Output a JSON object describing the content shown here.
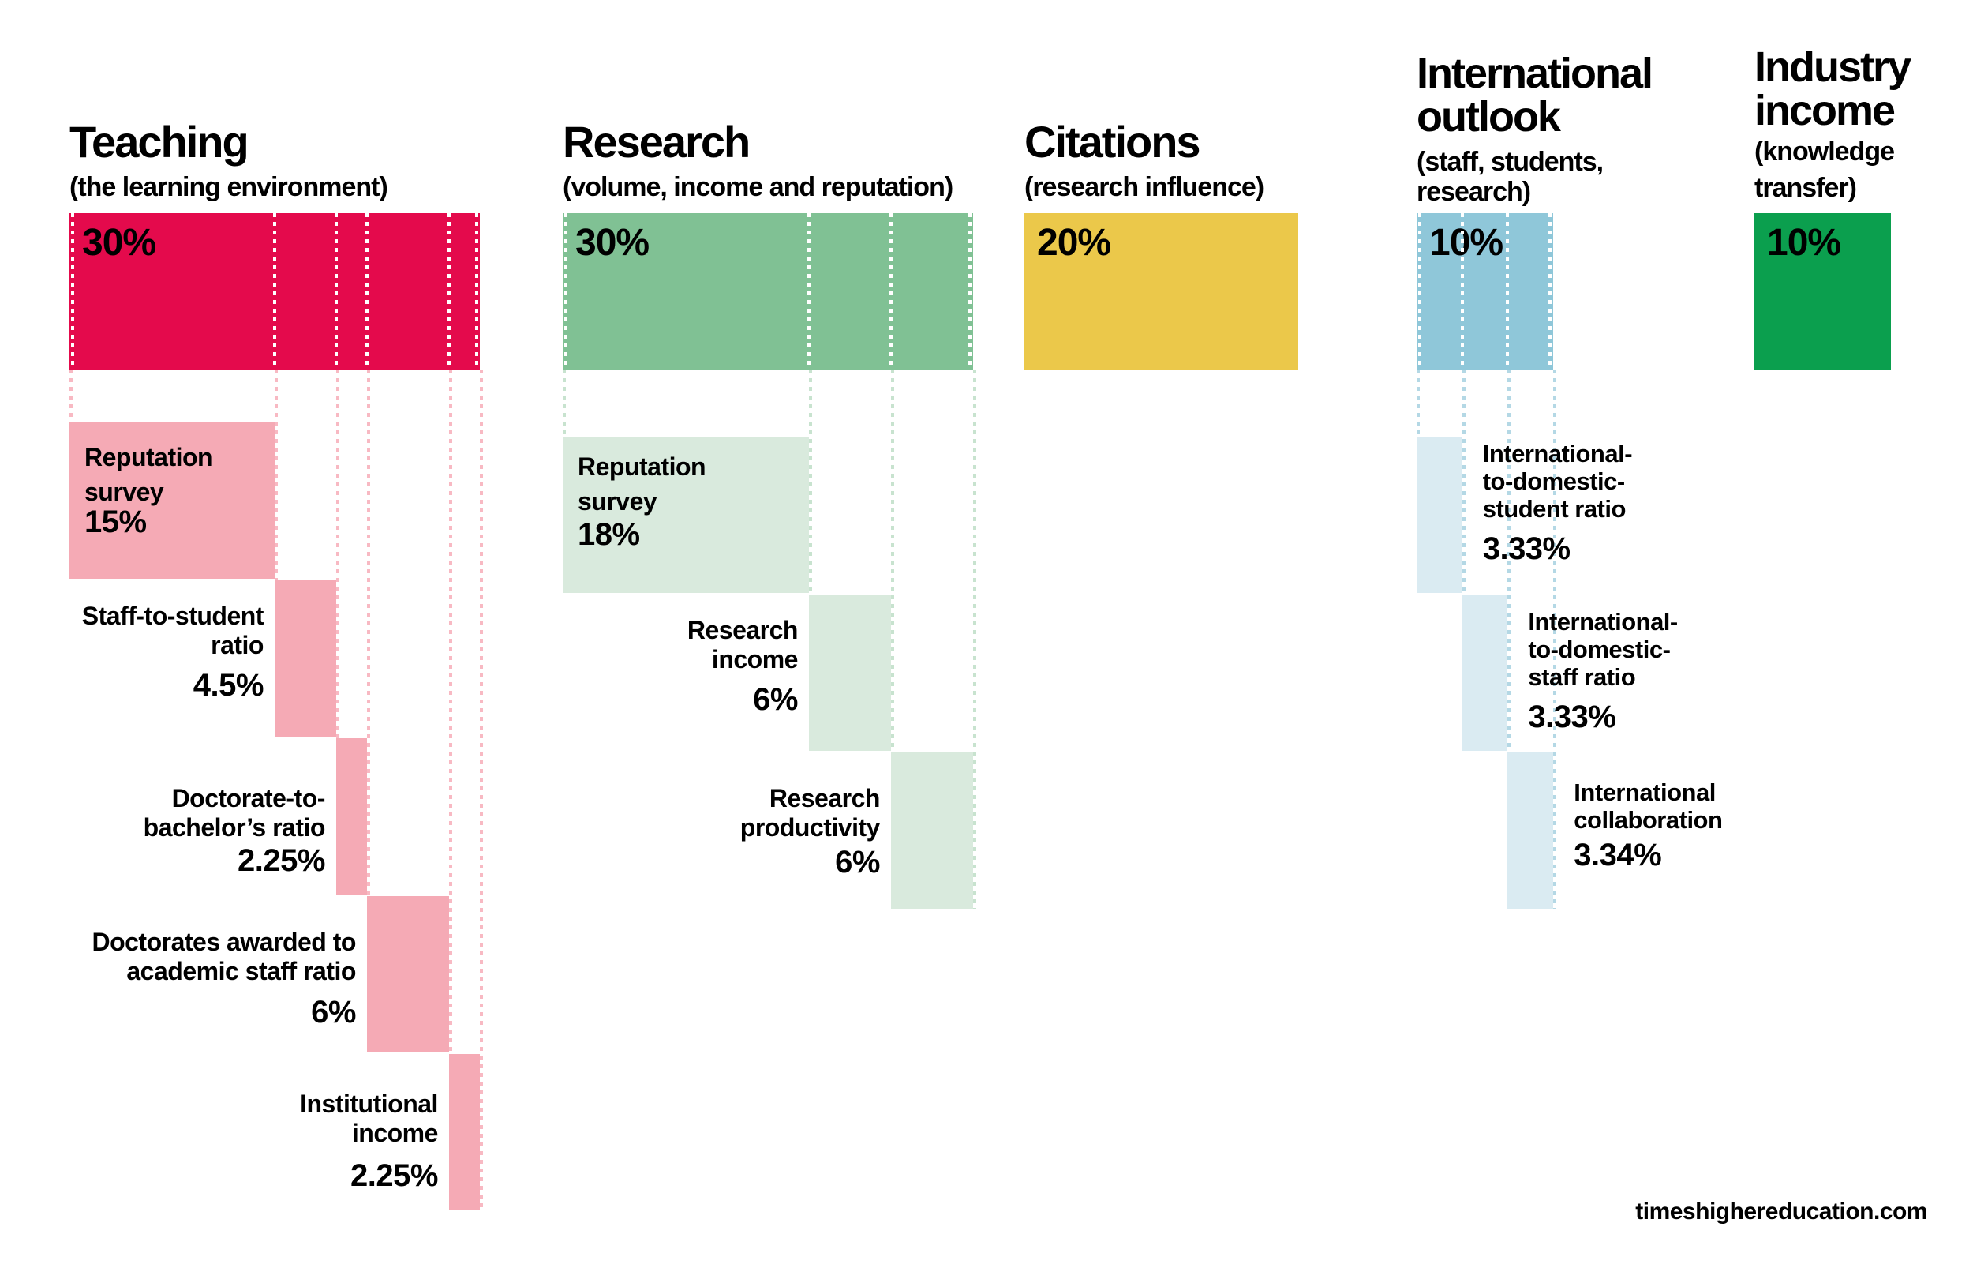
{
  "page": {
    "background": "#ffffff",
    "footer": {
      "text": "timeshighereducation.com"
    }
  },
  "chart_data": {
    "type": "bar",
    "title": "",
    "unit": "%",
    "orientation": "columns",
    "legend": "none",
    "grid": "off",
    "categories": [
      "Teaching",
      "Research",
      "Citations",
      "International outlook",
      "Industry income"
    ],
    "values": [
      30,
      30,
      20,
      10,
      10
    ],
    "columns": [
      {
        "title_lines": [
          "Teaching"
        ],
        "subtitle_lines": [
          "(the learning environment)"
        ],
        "weight": 30,
        "weight_label": "30%",
        "colors": {
          "bar": "#e40a4c",
          "block": "#f5aab5",
          "dots": "#f8b9c3"
        },
        "sub_components": [
          {
            "label_lines": [
              "Reputation",
              "survey"
            ],
            "value": 15,
            "value_label": "15%",
            "label_side": "inside"
          },
          {
            "label_lines": [
              "Staff-to-student",
              "ratio"
            ],
            "value": 4.5,
            "value_label": "4.5%",
            "label_side": "left"
          },
          {
            "label_lines": [
              "Doctorate-to-",
              "bachelor’s ratio"
            ],
            "value": 2.25,
            "value_label": "2.25%",
            "label_side": "left"
          },
          {
            "label_lines": [
              "Doctorates awarded to",
              "academic staff ratio"
            ],
            "value": 6,
            "value_label": "6%",
            "label_side": "left"
          },
          {
            "label_lines": [
              "Institutional",
              "income"
            ],
            "value": 2.25,
            "value_label": "2.25%",
            "label_side": "left"
          }
        ]
      },
      {
        "title_lines": [
          "Research"
        ],
        "subtitle_lines": [
          "(volume, income and reputation)"
        ],
        "weight": 30,
        "weight_label": "30%",
        "colors": {
          "bar": "#80c194",
          "block": "#d9eadd",
          "dots": "#c8e3cf"
        },
        "sub_components": [
          {
            "label_lines": [
              "Reputation",
              "survey"
            ],
            "value": 18,
            "value_label": "18%",
            "label_side": "inside"
          },
          {
            "label_lines": [
              "Research",
              "income"
            ],
            "value": 6,
            "value_label": "6%",
            "label_side": "left"
          },
          {
            "label_lines": [
              "Research",
              "productivity"
            ],
            "value": 6,
            "value_label": "6%",
            "label_side": "left"
          }
        ]
      },
      {
        "title_lines": [
          "Citations"
        ],
        "subtitle_lines": [
          "(research influence)"
        ],
        "weight": 20,
        "weight_label": "20%",
        "colors": {
          "bar": "#ebc84a",
          "block": "",
          "dots": ""
        },
        "sub_components": []
      },
      {
        "title_lines": [
          "International",
          "outlook"
        ],
        "subtitle_lines": [
          "(staff, students,",
          "research)"
        ],
        "weight": 10,
        "weight_label": "10%",
        "colors": {
          "bar": "#8fc7d9",
          "block": "#daebf2",
          "dots": "#b4d8e5"
        },
        "sub_components": [
          {
            "label_lines": [
              "International-",
              "to-domestic-",
              "student ratio"
            ],
            "value": 3.33,
            "value_label": "3.33%",
            "label_side": "right"
          },
          {
            "label_lines": [
              "International-",
              "to-domestic-",
              "staff ratio"
            ],
            "value": 3.33,
            "value_label": "3.33%",
            "label_side": "right"
          },
          {
            "label_lines": [
              "International",
              "collaboration"
            ],
            "value": 3.34,
            "value_label": "3.34%",
            "label_side": "right"
          }
        ]
      },
      {
        "title_lines": [
          "Industry",
          "income"
        ],
        "subtitle_lines": [
          "(knowledge",
          "transfer)"
        ],
        "weight": 10,
        "weight_label": "10%",
        "colors": {
          "bar": "#0b9f4e",
          "block": "",
          "dots": ""
        },
        "sub_components": []
      }
    ]
  }
}
